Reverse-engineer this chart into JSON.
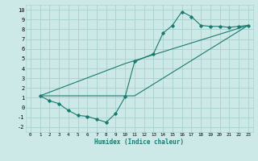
{
  "xlabel": "Humidex (Indice chaleur)",
  "background_color": "#cce9e8",
  "grid_color": "#aed4d2",
  "line_color": "#1a7a6e",
  "xlim": [
    -0.5,
    23.5
  ],
  "ylim": [
    -2.5,
    10.5
  ],
  "xticks": [
    0,
    1,
    2,
    3,
    4,
    5,
    6,
    7,
    8,
    9,
    10,
    11,
    12,
    13,
    14,
    15,
    16,
    17,
    18,
    19,
    20,
    21,
    22,
    23
  ],
  "yticks": [
    -2,
    -1,
    0,
    1,
    2,
    3,
    4,
    5,
    6,
    7,
    8,
    9,
    10
  ],
  "series1_x": [
    1,
    2,
    3,
    4,
    5,
    6,
    7,
    8,
    9,
    10,
    11,
    13,
    14,
    15,
    16,
    17,
    18,
    19,
    20,
    21,
    22,
    23
  ],
  "series1_y": [
    1.2,
    0.7,
    0.4,
    -0.3,
    -0.8,
    -0.9,
    -1.2,
    -1.5,
    -0.6,
    1.1,
    4.7,
    5.5,
    7.6,
    8.4,
    9.8,
    9.3,
    8.4,
    8.3,
    8.3,
    8.2,
    8.3,
    8.4
  ],
  "series2_x": [
    1,
    23
  ],
  "series2_y": [
    1.2,
    8.4
  ],
  "series3_x": [
    1,
    23
  ],
  "series3_y": [
    1.2,
    8.4
  ],
  "line2_x": [
    1,
    10,
    23
  ],
  "line2_y": [
    1.2,
    4.5,
    8.4
  ],
  "line3_x": [
    1,
    11,
    23
  ],
  "line3_y": [
    1.2,
    1.2,
    8.4
  ]
}
